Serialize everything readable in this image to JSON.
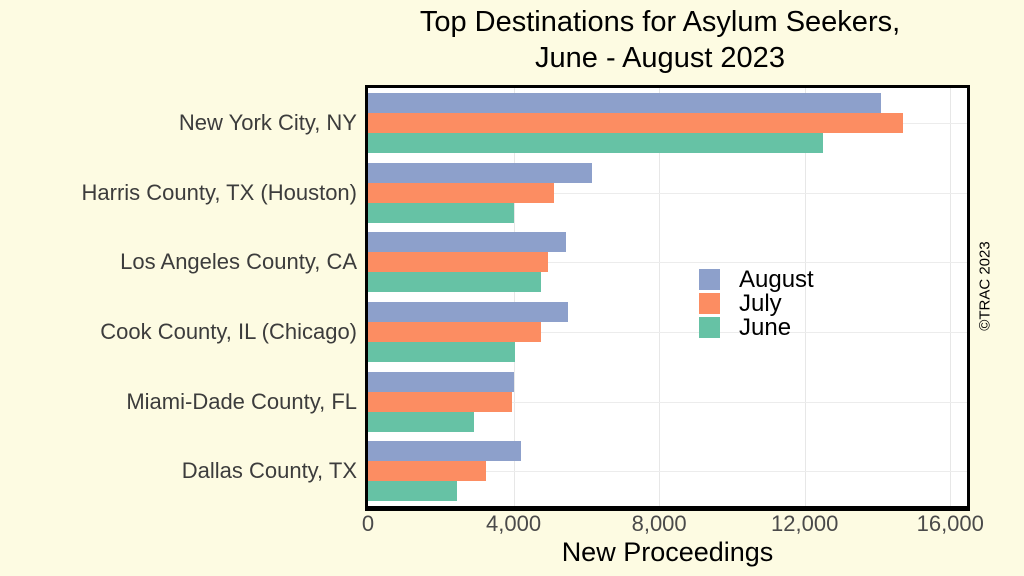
{
  "page": {
    "background_color": "#FDFBE2"
  },
  "chart_data": {
    "type": "bar",
    "orientation": "horizontal",
    "title_lines": [
      "Top Destinations for Asylum Seekers,",
      "June - August 2023"
    ],
    "xlabel": "New Proceedings",
    "watermark": "©TRAC 2023",
    "categories": [
      "New York City, NY",
      "Harris County, TX (Houston)",
      "Los Angeles County, CA",
      "Cook County, IL (Chicago)",
      "Miami-Dade County, FL",
      "Dallas County, TX"
    ],
    "series": [
      {
        "name": "August",
        "color": "#8DA0CB",
        "values": [
          14100,
          6150,
          5450,
          5500,
          4000,
          4200
        ]
      },
      {
        "name": "July",
        "color": "#FC8D62",
        "values": [
          14700,
          5100,
          4950,
          4750,
          3950,
          3250
        ]
      },
      {
        "name": "June",
        "color": "#66C2A5",
        "values": [
          12500,
          4000,
          4750,
          4050,
          2900,
          2450
        ]
      }
    ],
    "x_ticks": [
      {
        "label": "0",
        "value": 0
      },
      {
        "label": "4,000",
        "value": 4000
      },
      {
        "label": "8,000",
        "value": 8000
      },
      {
        "label": "12,000",
        "value": 12000
      },
      {
        "label": "16,000",
        "value": 16000
      }
    ],
    "xlim": [
      0,
      16460
    ],
    "grid": true,
    "legend_position": "inside-right",
    "panel_background": "#ffffff",
    "gridline_color": "#E7E7E7"
  }
}
